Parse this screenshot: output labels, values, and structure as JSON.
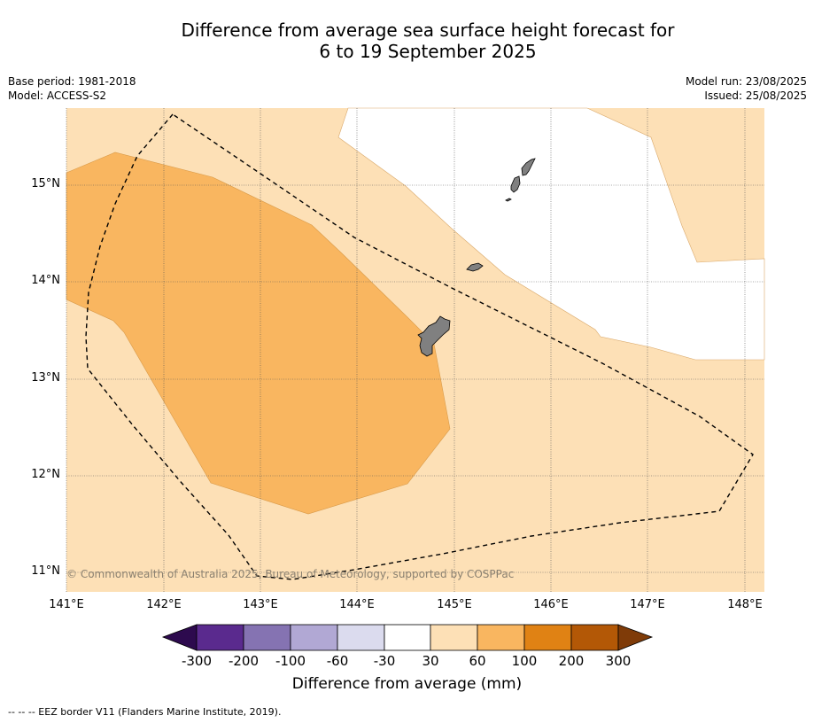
{
  "title_line1": "Difference from average sea surface height forecast for",
  "title_line2": "6 to 19 September 2025",
  "meta_left": {
    "base_period": "Base period: 1981-2018",
    "model": "Model: ACCESS-S2"
  },
  "meta_right": {
    "model_run": "Model run: 23/08/2025",
    "issued": "Issued: 25/08/2025"
  },
  "map": {
    "lat_labels": [
      "15°N",
      "14°N",
      "13°N",
      "12°N",
      "11°N"
    ],
    "lon_labels": [
      "141°E",
      "142°E",
      "143°E",
      "144°E",
      "145°E",
      "146°E",
      "147°E",
      "148°E"
    ],
    "copyright": "© Commonwealth of Australia 2025, Bureau of Meteorology, supported by COSPPac",
    "colors": {
      "band_30_60": "#fde0b6",
      "band_60_100": "#f9b660",
      "land": "#808080",
      "eez_border": "#000000"
    }
  },
  "colorbar": {
    "labels": [
      "-300",
      "-200",
      "-100",
      "-60",
      "-30",
      "30",
      "60",
      "100",
      "200",
      "300"
    ],
    "colors": [
      "#2d0a4e",
      "#5a2a8e",
      "#8573b2",
      "#b1a8d4",
      "#dbdbee",
      "#ffffff",
      "#fde0b6",
      "#f9b660",
      "#e08214",
      "#b35806",
      "#7f3b08"
    ],
    "title": "Difference from average (mm)"
  },
  "footer": "--  --  -- EEZ border V11 (Flanders Marine Institute, 2019)."
}
